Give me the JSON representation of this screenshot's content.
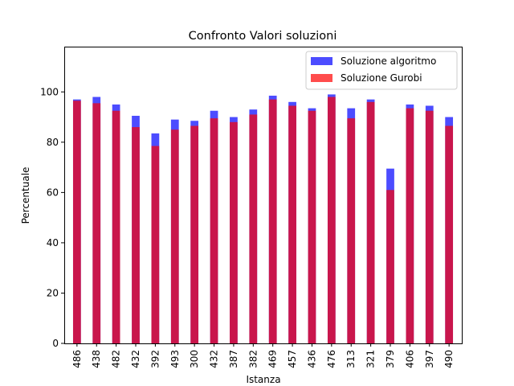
{
  "chart_data": {
    "type": "bar",
    "title": "Confronto Valori soluzioni",
    "xlabel": "Istanza",
    "ylabel": "Percentuale",
    "ylim": [
      0,
      118
    ],
    "yticks": [
      0,
      20,
      40,
      60,
      80,
      100
    ],
    "grid": false,
    "legend_position": "top-right",
    "categories": [
      "486",
      "438",
      "482",
      "432",
      "392",
      "493",
      "300",
      "432",
      "387",
      "382",
      "469",
      "457",
      "436",
      "476",
      "313",
      "321",
      "379",
      "406",
      "397",
      "490"
    ],
    "series": [
      {
        "name": "Soluzione algoritmo",
        "color": "#0000ff",
        "opacity": 0.7,
        "values": [
          97.0,
          98.0,
          95.0,
          90.5,
          83.5,
          89.0,
          88.5,
          92.5,
          90.0,
          93.0,
          98.5,
          96.0,
          93.5,
          99.0,
          93.5,
          97.0,
          69.5,
          95.0,
          94.5,
          90.0
        ]
      },
      {
        "name": "Soluzione Gurobi",
        "color": "#ff0000",
        "opacity": 0.7,
        "values": [
          96.5,
          95.5,
          92.5,
          86.0,
          78.5,
          85.0,
          86.5,
          89.5,
          88.0,
          91.0,
          97.0,
          94.5,
          92.5,
          98.0,
          89.5,
          96.0,
          61.0,
          93.5,
          92.5,
          86.5
        ]
      }
    ]
  }
}
